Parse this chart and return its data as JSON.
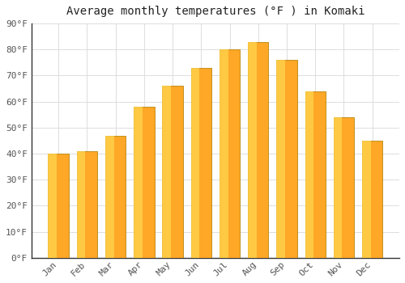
{
  "title": "Average monthly temperatures (°F ) in Komaki",
  "months": [
    "Jan",
    "Feb",
    "Mar",
    "Apr",
    "May",
    "Jun",
    "Jul",
    "Aug",
    "Sep",
    "Oct",
    "Nov",
    "Dec"
  ],
  "values": [
    40,
    41,
    47,
    58,
    66,
    73,
    80,
    83,
    76,
    64,
    54,
    45
  ],
  "bar_color_main": "#FFA726",
  "bar_color_highlight": "#FFD54F",
  "bar_edge_color": "#B8860B",
  "background_color": "#FFFFFF",
  "grid_color": "#DDDDDD",
  "ylim": [
    0,
    90
  ],
  "yticks": [
    0,
    10,
    20,
    30,
    40,
    50,
    60,
    70,
    80,
    90
  ],
  "title_fontsize": 10,
  "tick_fontsize": 8,
  "tick_color": "#555555",
  "title_color": "#222222",
  "yaxis_line_color": "#333333"
}
